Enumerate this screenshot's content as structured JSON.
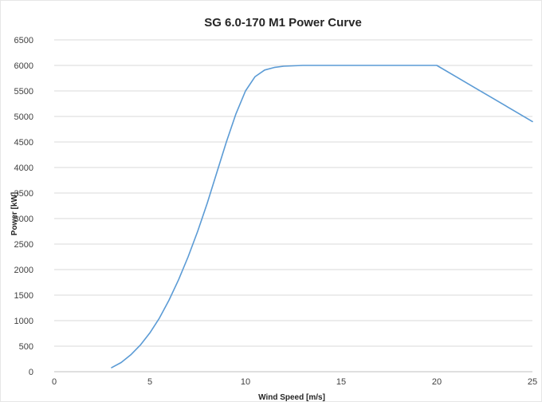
{
  "chart_data": {
    "type": "line",
    "title": "SG 6.0-170  M1 Power Curve",
    "xlabel": "Wind Speed [m/s]",
    "ylabel": "Power [kW]",
    "xlim": [
      0,
      25
    ],
    "ylim": [
      0,
      6500
    ],
    "xticks": [
      0,
      5,
      10,
      15,
      20,
      25
    ],
    "yticks": [
      0,
      500,
      1000,
      1500,
      2000,
      2500,
      3000,
      3500,
      4000,
      4500,
      5000,
      5500,
      6000,
      6500
    ],
    "grid": "horizontal",
    "legend": "none",
    "series": [
      {
        "color": "#5b9bd5",
        "x": [
          3,
          3.5,
          4,
          4.5,
          5,
          5.5,
          6,
          6.5,
          7,
          7.5,
          8,
          8.5,
          9,
          9.5,
          10,
          10.5,
          11,
          11.5,
          12,
          13,
          14,
          15,
          16,
          17,
          18,
          19,
          20,
          21,
          22,
          23,
          24,
          25
        ],
        "y": [
          80,
          180,
          330,
          520,
          760,
          1050,
          1400,
          1800,
          2250,
          2750,
          3300,
          3900,
          4500,
          5050,
          5500,
          5780,
          5910,
          5960,
          5985,
          6000,
          6000,
          6000,
          6000,
          6000,
          6000,
          6000,
          6000,
          5780,
          5560,
          5340,
          5120,
          4900
        ]
      }
    ]
  }
}
